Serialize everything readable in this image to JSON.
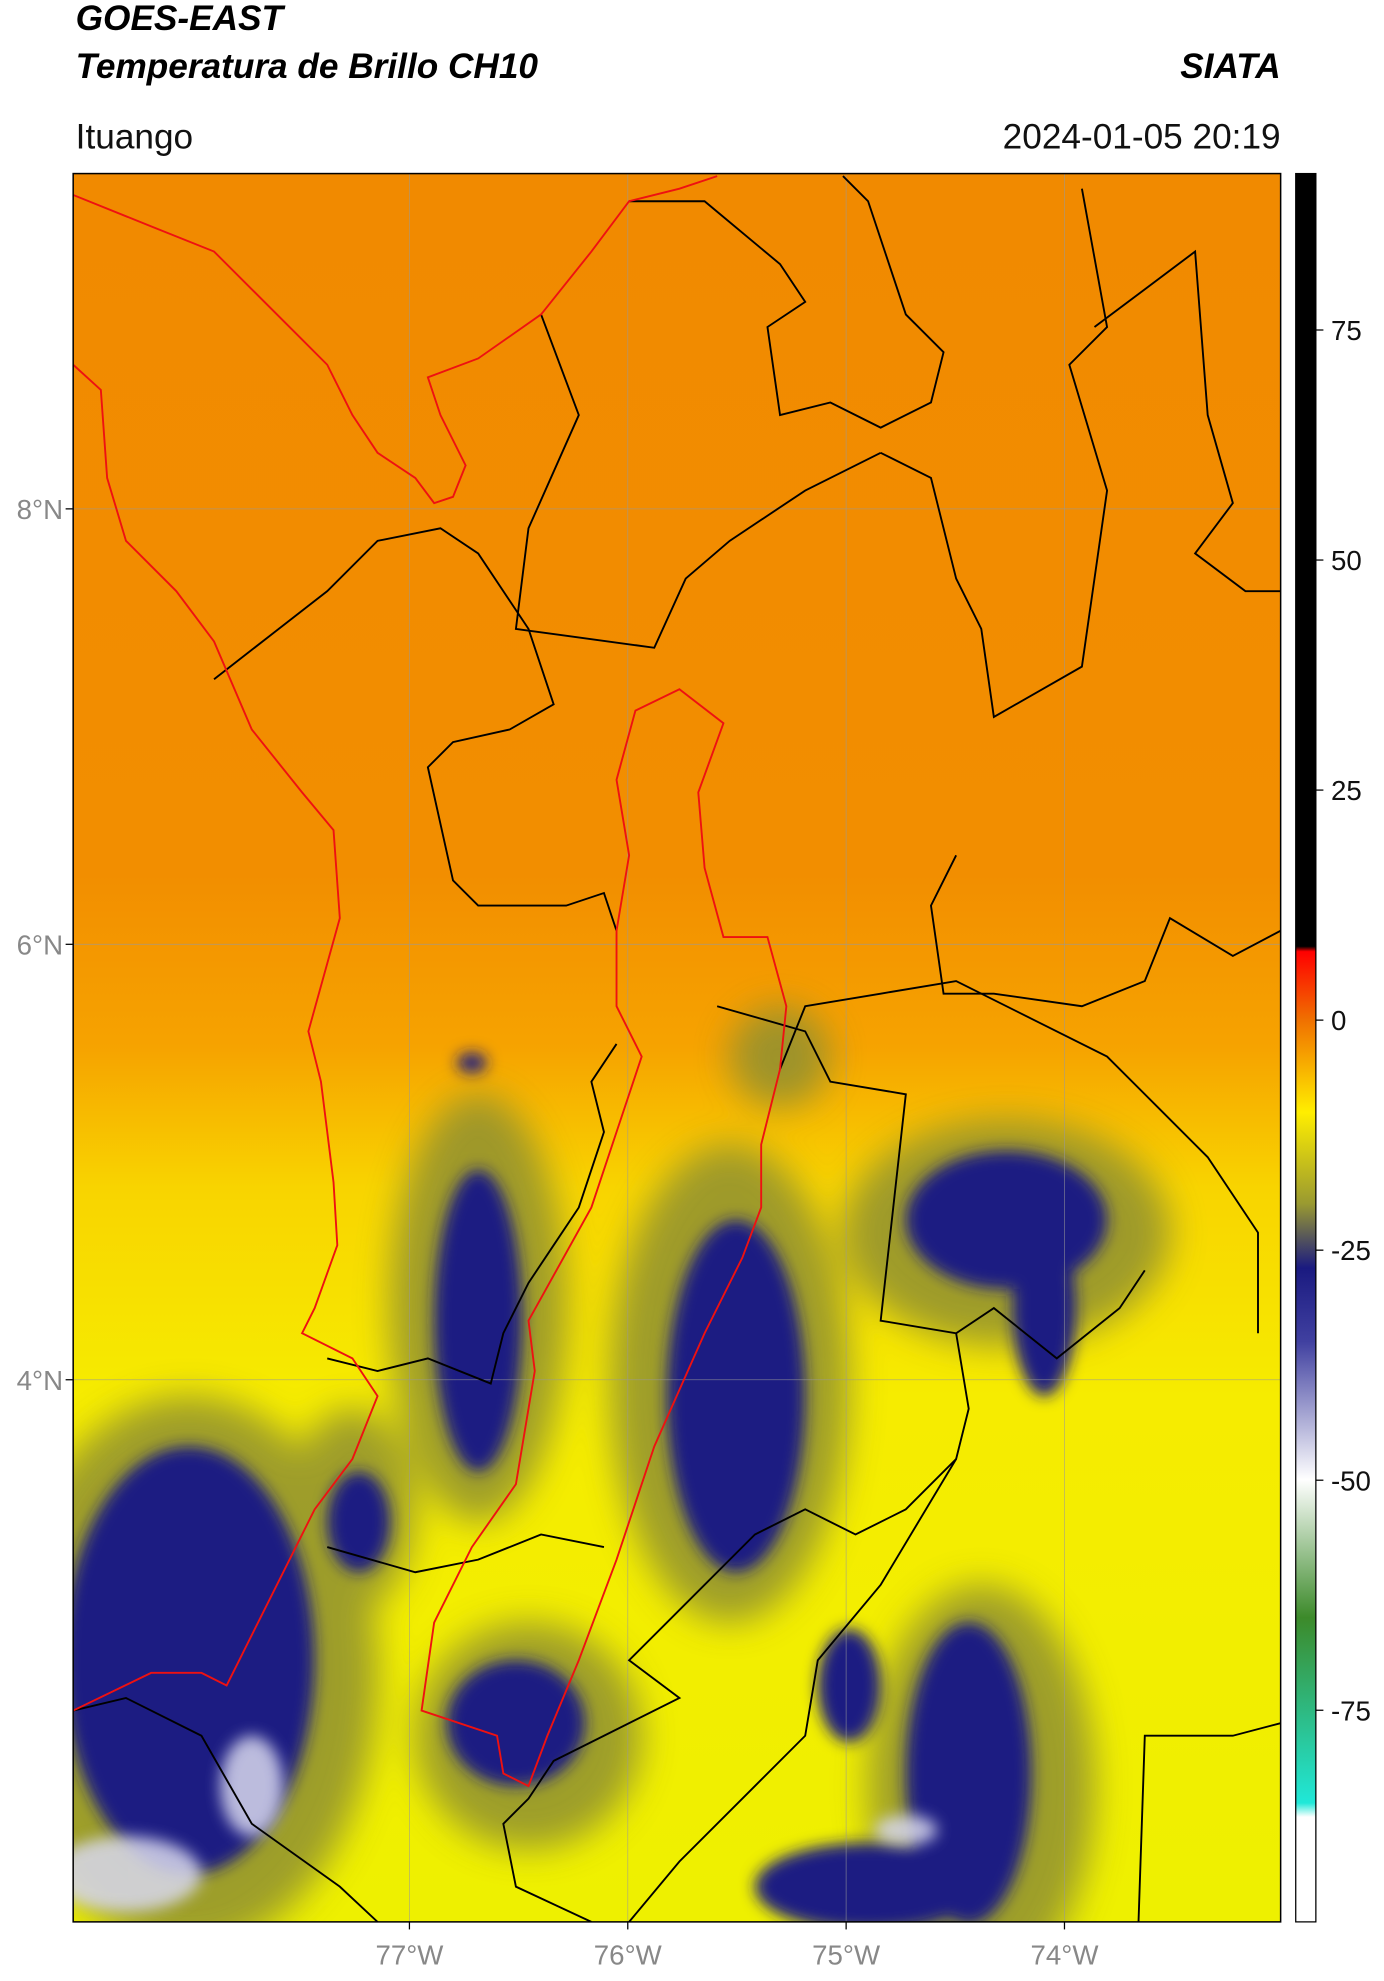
{
  "header": {
    "title": "GOES-EAST",
    "subtitle": "Temperatura de Brillo CH10",
    "source": "SIATA",
    "location": "Ituango",
    "datetime": "2024-01-05 20:19"
  },
  "map": {
    "xlim": [
      -78.54,
      -73.01
    ],
    "ylim": [
      1.51,
      9.54
    ],
    "grid": true,
    "xticks": [
      {
        "value": -77,
        "label": "77°W"
      },
      {
        "value": -76,
        "label": "76°W"
      },
      {
        "value": -75,
        "label": "75°W"
      },
      {
        "value": -74,
        "label": "74°W"
      }
    ],
    "yticks": [
      {
        "value": 8,
        "label": "8°N"
      },
      {
        "value": 6,
        "label": "6°N"
      },
      {
        "value": 4,
        "label": "4°N"
      }
    ]
  },
  "colorbar": {
    "clim": [
      -98,
      92
    ],
    "ticks": [
      75,
      50,
      25,
      0,
      -25,
      -50,
      -75
    ]
  }
}
